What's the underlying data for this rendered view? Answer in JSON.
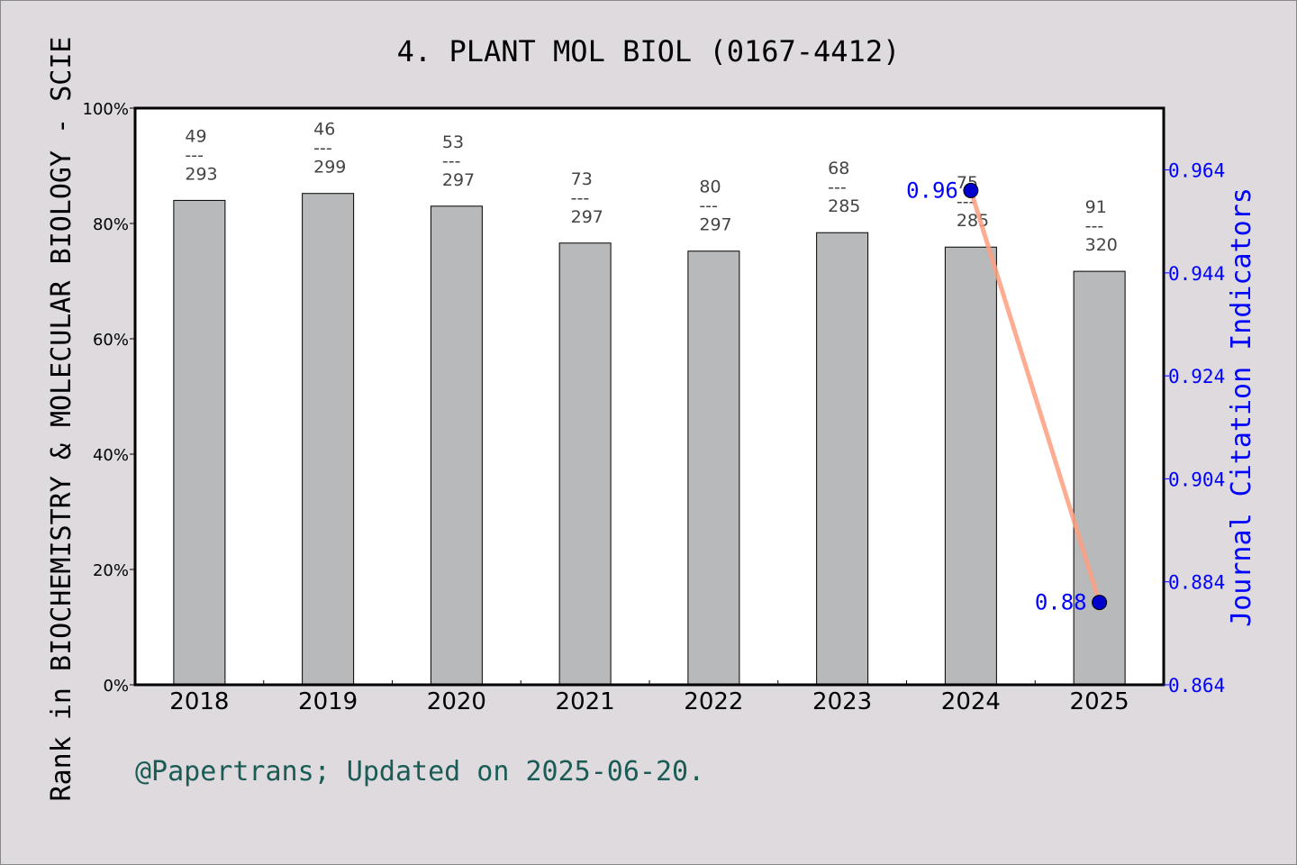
{
  "chart_data": {
    "type": "bar",
    "title": "4. PLANT MOL BIOL (0167-4412)",
    "categories": [
      "2018",
      "2019",
      "2020",
      "2021",
      "2022",
      "2023",
      "2024",
      "2025"
    ],
    "ylabel": "Rank in BIOCHEMISTRY & MOLECULAR BIOLOGY - SCIE",
    "ylim": [
      0,
      100
    ],
    "yticks": [
      "0%",
      "20%",
      "40%",
      "60%",
      "80%",
      "100%"
    ],
    "series": [
      {
        "type": "bar",
        "values": [
          84.0,
          85.2,
          83.0,
          76.6,
          75.2,
          78.4,
          75.9,
          71.7
        ],
        "rank": [
          "49",
          "46",
          "53",
          "73",
          "80",
          "68",
          "75",
          "91"
        ],
        "total": [
          "293",
          "299",
          "297",
          "297",
          "297",
          "285",
          "285",
          "320"
        ],
        "separator": "---",
        "color": "#b8b9ba"
      },
      {
        "type": "line",
        "axis": "right",
        "x": [
          "2024",
          "2025"
        ],
        "values": [
          0.96,
          0.88
        ],
        "labels": [
          "0.96",
          "0.88"
        ],
        "line_color": "#ff9f7f",
        "marker_color": "#0000cc"
      }
    ],
    "y2label": "Journal Citation Indicators",
    "y2lim": [
      0.864,
      0.976
    ],
    "y2ticks": [
      "0.864",
      "0.884",
      "0.904",
      "0.924",
      "0.944",
      "0.964"
    ],
    "y2_color": "#0000ff",
    "grid": false
  },
  "footer": "@Papertrans; Updated on 2025-06-20."
}
